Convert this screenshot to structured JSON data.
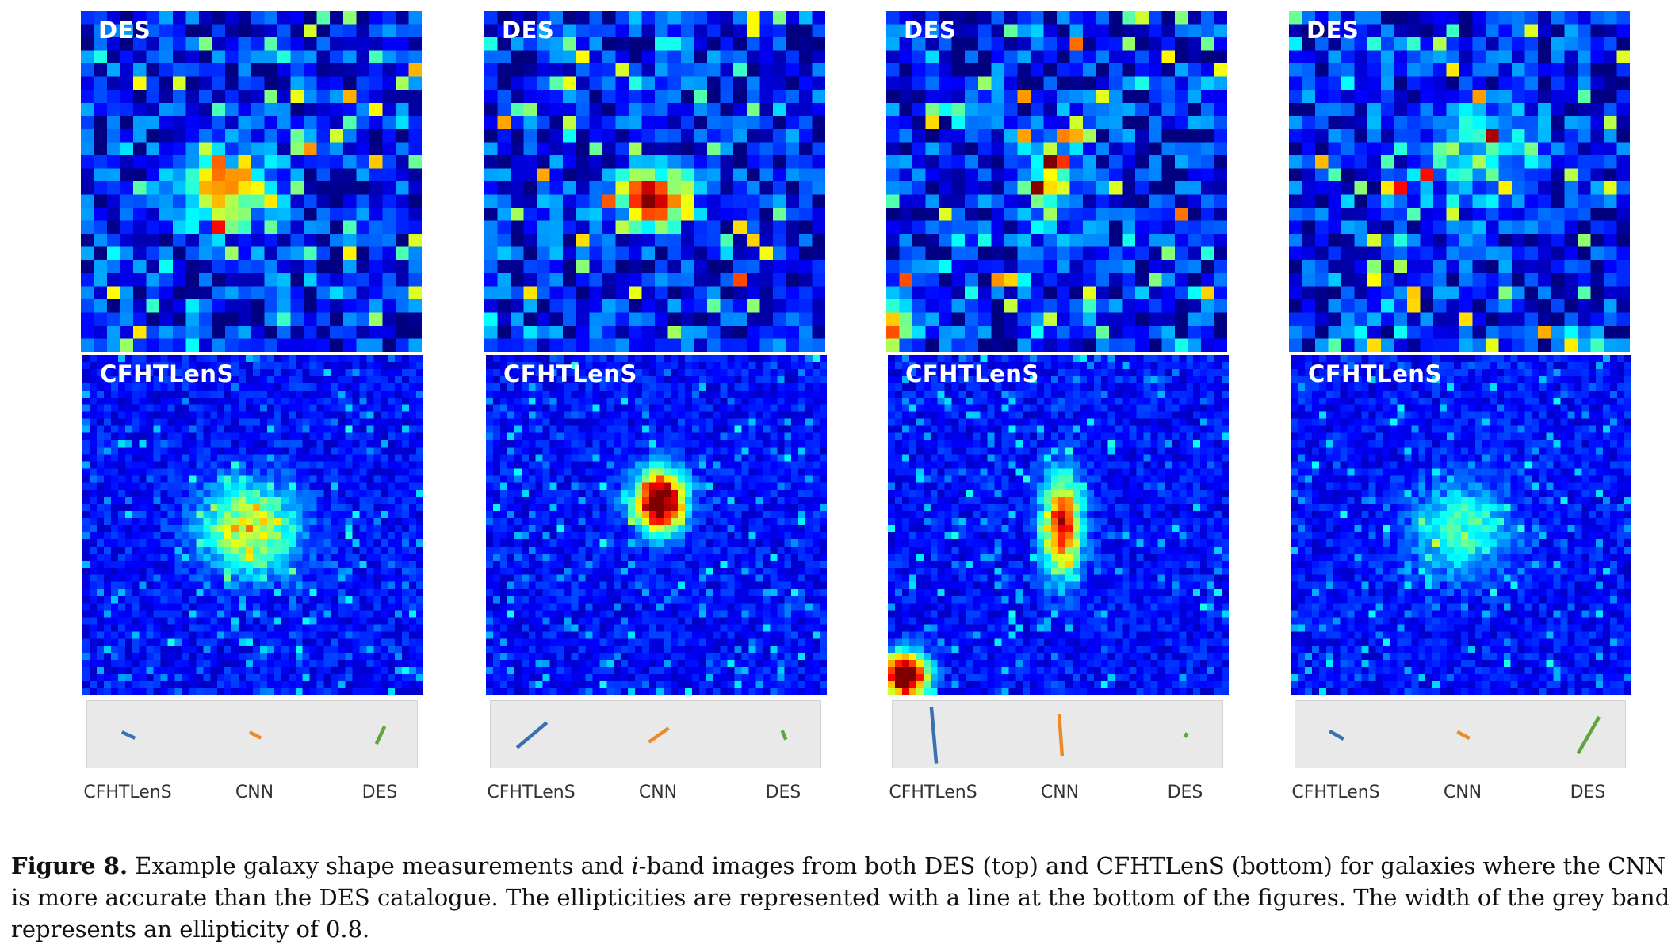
{
  "figure": {
    "label_top": "DES",
    "label_bottom": "CFHTLenS",
    "band_labels": [
      "CFHTLenS",
      "CNN",
      "DES"
    ],
    "band_colors": {
      "CFHTLenS": "#3a6fb0",
      "CNN": "#e98a2c",
      "DES": "#5ea63c"
    },
    "columns": [
      {
        "sticks": [
          {
            "len": 0.18,
            "angle": 65
          },
          {
            "len": 0.16,
            "angle": 62
          },
          {
            "len": 0.24,
            "angle": -25
          }
        ]
      },
      {
        "sticks": [
          {
            "len": 0.48,
            "angle": -50
          },
          {
            "len": 0.3,
            "angle": -55
          },
          {
            "len": 0.12,
            "angle": 22
          }
        ]
      },
      {
        "sticks": [
          {
            "len": 0.7,
            "angle": 5
          },
          {
            "len": 0.52,
            "angle": 4
          },
          {
            "len": 0.06,
            "angle": -30
          }
        ]
      },
      {
        "sticks": [
          {
            "len": 0.2,
            "angle": 60
          },
          {
            "len": 0.17,
            "angle": 62
          },
          {
            "len": 0.52,
            "angle": -30
          }
        ]
      }
    ]
  },
  "caption": {
    "label": "Figure 8.",
    "part1": " Example galaxy shape measurements and ",
    "italic": "i",
    "part2": "-band images from both DES (top) and CFHTLenS (bottom) for galaxies where the CNN is more accurate than the DES catalogue. The ellipticities are represented with a line at the bottom of the figures. The width of the grey band represents an ellipticity of 0.8."
  }
}
